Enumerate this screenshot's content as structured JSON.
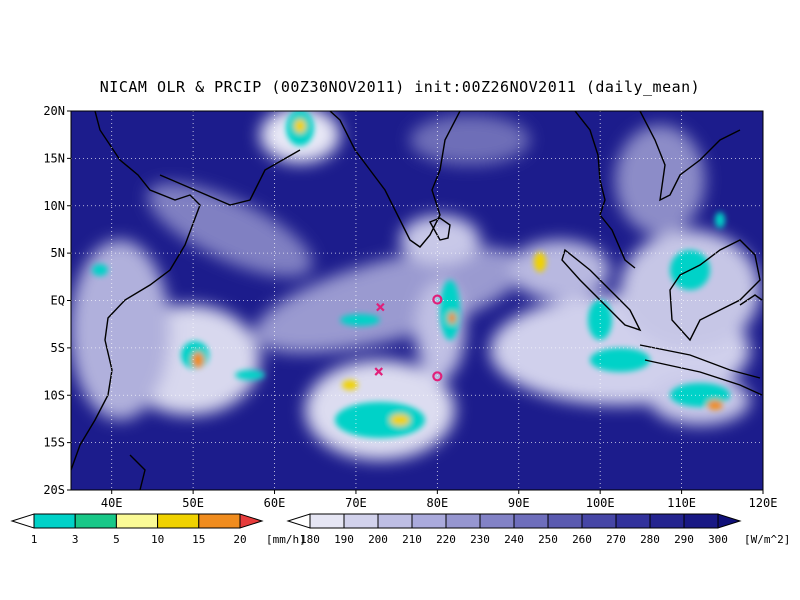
{
  "title": "NICAM OLR & PRCIP (00Z30NOV2011) init:00Z26NOV2011 (daily_mean)",
  "map": {
    "lon_range": [
      35,
      120
    ],
    "lat_range": [
      -20,
      20
    ],
    "lat_ticks": [
      "20N",
      "15N",
      "10N",
      "5N",
      "EQ",
      "5S",
      "10S",
      "15S",
      "20S"
    ],
    "lat_values": [
      20,
      15,
      10,
      5,
      0,
      -5,
      -10,
      -15,
      -20
    ],
    "lon_ticks": [
      "40E",
      "50E",
      "60E",
      "70E",
      "80E",
      "90E",
      "100E",
      "110E",
      "120E"
    ],
    "lon_values": [
      40,
      50,
      60,
      70,
      80,
      90,
      100,
      110,
      120
    ],
    "markers": [
      {
        "type": "x",
        "lon": 73,
        "lat": -0.7,
        "color": "#e0207a"
      },
      {
        "type": "x",
        "lon": 72.8,
        "lat": -7.5,
        "color": "#e0207a"
      },
      {
        "type": "circle",
        "lon": 80,
        "lat": 0.1,
        "color": "#e0207a"
      },
      {
        "type": "circle",
        "lon": 80,
        "lat": -8.0,
        "color": "#e0207a"
      }
    ]
  },
  "precip_colorbar": {
    "labels": [
      "1",
      "3",
      "5",
      "10",
      "15",
      "20"
    ],
    "unit": "[mm/h]",
    "colors": [
      "#ffffff",
      "#00d2c8",
      "#18c888",
      "#fafa96",
      "#f0d200",
      "#f08c1e",
      "#e63c3c"
    ]
  },
  "olr_colorbar": {
    "labels": [
      "180",
      "190",
      "200",
      "210",
      "220",
      "230",
      "240",
      "250",
      "260",
      "270",
      "280",
      "290",
      "300"
    ],
    "unit": "[W/m^2]",
    "colors": [
      "#ffffff",
      "#e6e6f4",
      "#d2d2ec",
      "#bebee4",
      "#aaaadc",
      "#9696d0",
      "#8282c6",
      "#6e6ebc",
      "#5a5ab0",
      "#4646a6",
      "#32329c",
      "#24248f",
      "#181884",
      "#101078"
    ]
  }
}
